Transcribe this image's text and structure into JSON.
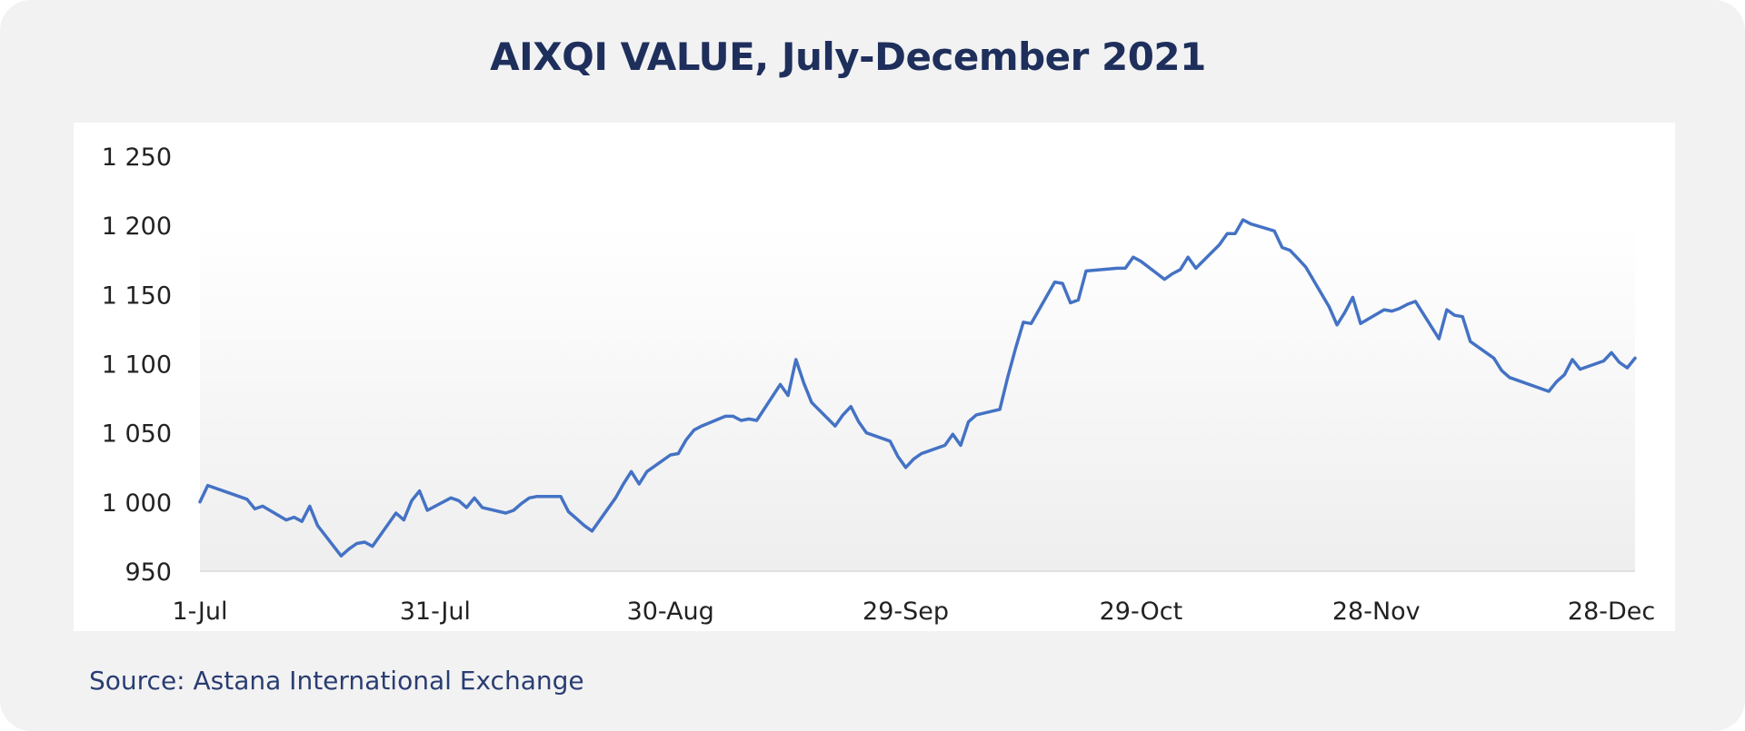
{
  "title": "AIXQI VALUE, July-December 2021",
  "source": "Source: Astana International Exchange",
  "colors": {
    "line": "#4472c4",
    "title": "#1f2f5c",
    "background": "#f2f2f3",
    "panel": "#ffffff"
  },
  "chart_data": {
    "type": "line",
    "title": "AIXQI VALUE, July-December 2021",
    "xlabel": "",
    "ylabel": "",
    "ylim": [
      950,
      1250
    ],
    "yticks": [
      950,
      1000,
      1050,
      1100,
      1150,
      1200,
      1250
    ],
    "ytick_labels": [
      "950",
      "1 000",
      "1 050",
      "1 100",
      "1 150",
      "1 200",
      "1 250"
    ],
    "xticks": [
      "2021-07-01",
      "2021-07-31",
      "2021-08-30",
      "2021-09-29",
      "2021-10-29",
      "2021-11-28",
      "2021-12-28"
    ],
    "xtick_labels": [
      "1-Jul",
      "31-Jul",
      "30-Aug",
      "29-Sep",
      "29-Oct",
      "28-Nov",
      "28-Dec"
    ],
    "xlim": [
      "2021-07-01",
      "2021-12-31"
    ],
    "grid": false,
    "legend": "none",
    "series": [
      {
        "x": [
          "2021-07-01",
          "2021-07-02",
          "2021-07-07",
          "2021-07-08",
          "2021-07-09",
          "2021-07-12",
          "2021-07-13",
          "2021-07-14",
          "2021-07-15",
          "2021-07-16",
          "2021-07-19",
          "2021-07-20",
          "2021-07-21",
          "2021-07-22",
          "2021-07-23",
          "2021-07-26",
          "2021-07-27",
          "2021-07-28",
          "2021-07-29",
          "2021-07-30",
          "2021-08-02",
          "2021-08-03",
          "2021-08-04",
          "2021-08-05",
          "2021-08-06",
          "2021-08-09",
          "2021-08-10",
          "2021-08-11",
          "2021-08-12",
          "2021-08-13",
          "2021-08-16",
          "2021-08-17",
          "2021-08-18",
          "2021-08-19",
          "2021-08-20",
          "2021-08-23",
          "2021-08-24",
          "2021-08-25",
          "2021-08-26",
          "2021-08-27",
          "2021-08-30",
          "2021-08-31",
          "2021-09-01",
          "2021-09-02",
          "2021-09-03",
          "2021-09-06",
          "2021-09-07",
          "2021-09-08",
          "2021-09-09",
          "2021-09-10",
          "2021-09-13",
          "2021-09-14",
          "2021-09-15",
          "2021-09-16",
          "2021-09-17",
          "2021-09-20",
          "2021-09-21",
          "2021-09-22",
          "2021-09-23",
          "2021-09-24",
          "2021-09-27",
          "2021-09-28",
          "2021-09-29",
          "2021-09-30",
          "2021-10-01",
          "2021-10-04",
          "2021-10-05",
          "2021-10-06",
          "2021-10-07",
          "2021-10-08",
          "2021-10-11",
          "2021-10-12",
          "2021-10-13",
          "2021-10-14",
          "2021-10-15",
          "2021-10-18",
          "2021-10-19",
          "2021-10-20",
          "2021-10-21",
          "2021-10-22",
          "2021-10-26",
          "2021-10-27",
          "2021-10-28",
          "2021-10-29",
          "2021-11-01",
          "2021-11-02",
          "2021-11-03",
          "2021-11-04",
          "2021-11-05",
          "2021-11-08",
          "2021-11-09",
          "2021-11-10",
          "2021-11-11",
          "2021-11-12",
          "2021-11-15",
          "2021-11-16",
          "2021-11-17",
          "2021-11-18",
          "2021-11-19",
          "2021-11-22",
          "2021-11-23",
          "2021-11-24",
          "2021-11-25",
          "2021-11-26",
          "2021-11-29",
          "2021-11-30",
          "2021-12-01",
          "2021-12-02",
          "2021-12-03",
          "2021-12-06",
          "2021-12-07",
          "2021-12-08",
          "2021-12-09",
          "2021-12-10",
          "2021-12-13",
          "2021-12-14",
          "2021-12-15",
          "2021-12-20",
          "2021-12-21",
          "2021-12-22",
          "2021-12-23",
          "2021-12-24",
          "2021-12-27",
          "2021-12-28",
          "2021-12-29",
          "2021-12-30",
          "2021-12-31"
        ],
        "values": [
          1000,
          1012,
          1002,
          995,
          997,
          987,
          989,
          986,
          997,
          983,
          961,
          966,
          970,
          971,
          968,
          992,
          987,
          1001,
          1008,
          994,
          1003,
          1001,
          996,
          1003,
          996,
          992,
          994,
          999,
          1003,
          1004,
          1004,
          993,
          988,
          983,
          979,
          1003,
          1013,
          1022,
          1013,
          1022,
          1034,
          1035,
          1045,
          1052,
          1055,
          1062,
          1062,
          1059,
          1060,
          1059,
          1085,
          1077,
          1103,
          1086,
          1072,
          1055,
          1063,
          1069,
          1058,
          1050,
          1044,
          1033,
          1025,
          1031,
          1035,
          1041,
          1049,
          1041,
          1058,
          1063,
          1067,
          1090,
          1111,
          1130,
          1129,
          1159,
          1158,
          1144,
          1146,
          1167,
          1169,
          1169,
          1177,
          1174,
          1161,
          1165,
          1168,
          1177,
          1169,
          1186,
          1194,
          1194,
          1204,
          1201,
          1196,
          1184,
          1182,
          1176,
          1170,
          1141,
          1128,
          1137,
          1148,
          1129,
          1139,
          1138,
          1140,
          1143,
          1145,
          1118,
          1139,
          1135,
          1134,
          1116,
          1104,
          1095,
          1090,
          1080,
          1087,
          1092,
          1103,
          1096,
          1102,
          1108,
          1101,
          1097,
          1104
        ]
      }
    ]
  }
}
